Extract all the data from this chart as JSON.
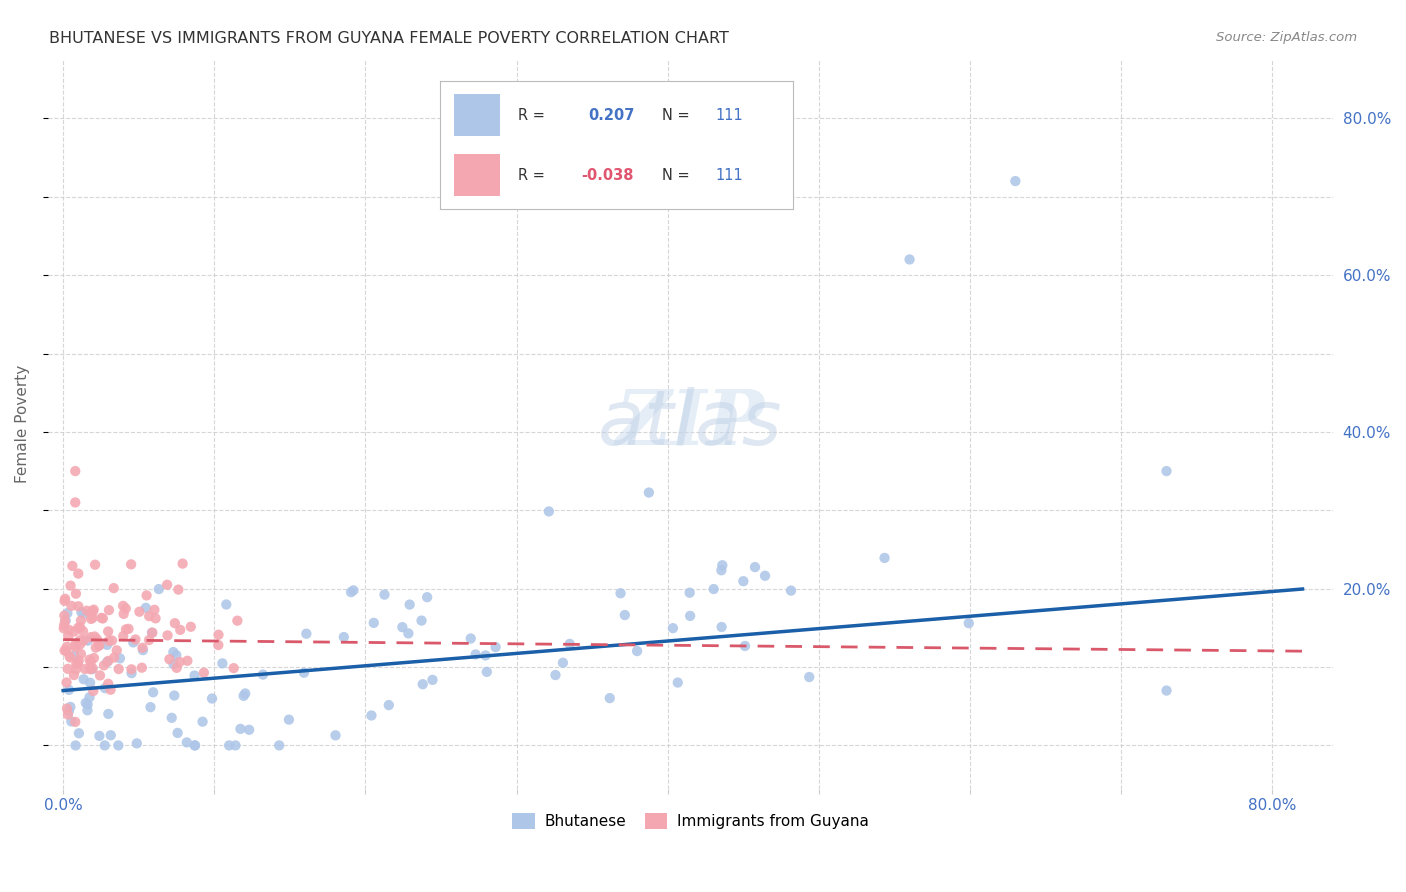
{
  "title": "BHUTANESE VS IMMIGRANTS FROM GUYANA FEMALE POVERTY CORRELATION CHART",
  "source": "Source: ZipAtlas.com",
  "ylabel": "Female Poverty",
  "bhutanese_color": "#aec6e8",
  "guyana_color": "#f4a7b0",
  "bhutanese_line_color": "#1a5fa8",
  "guyana_line_color": "#d9596a",
  "R_bhutanese": "0.207",
  "R_guyana": "-0.038",
  "N": "111",
  "legend_bottom": [
    "Bhutanese",
    "Immigrants from Guyana"
  ],
  "watermark_zip": "ZIP",
  "watermark_atlas": "atlas",
  "background_color": "#ffffff",
  "grid_color": "#cccccc",
  "title_color": "#333333",
  "blue_label_color": "#4472c4",
  "pink_label_color": "#e05570"
}
